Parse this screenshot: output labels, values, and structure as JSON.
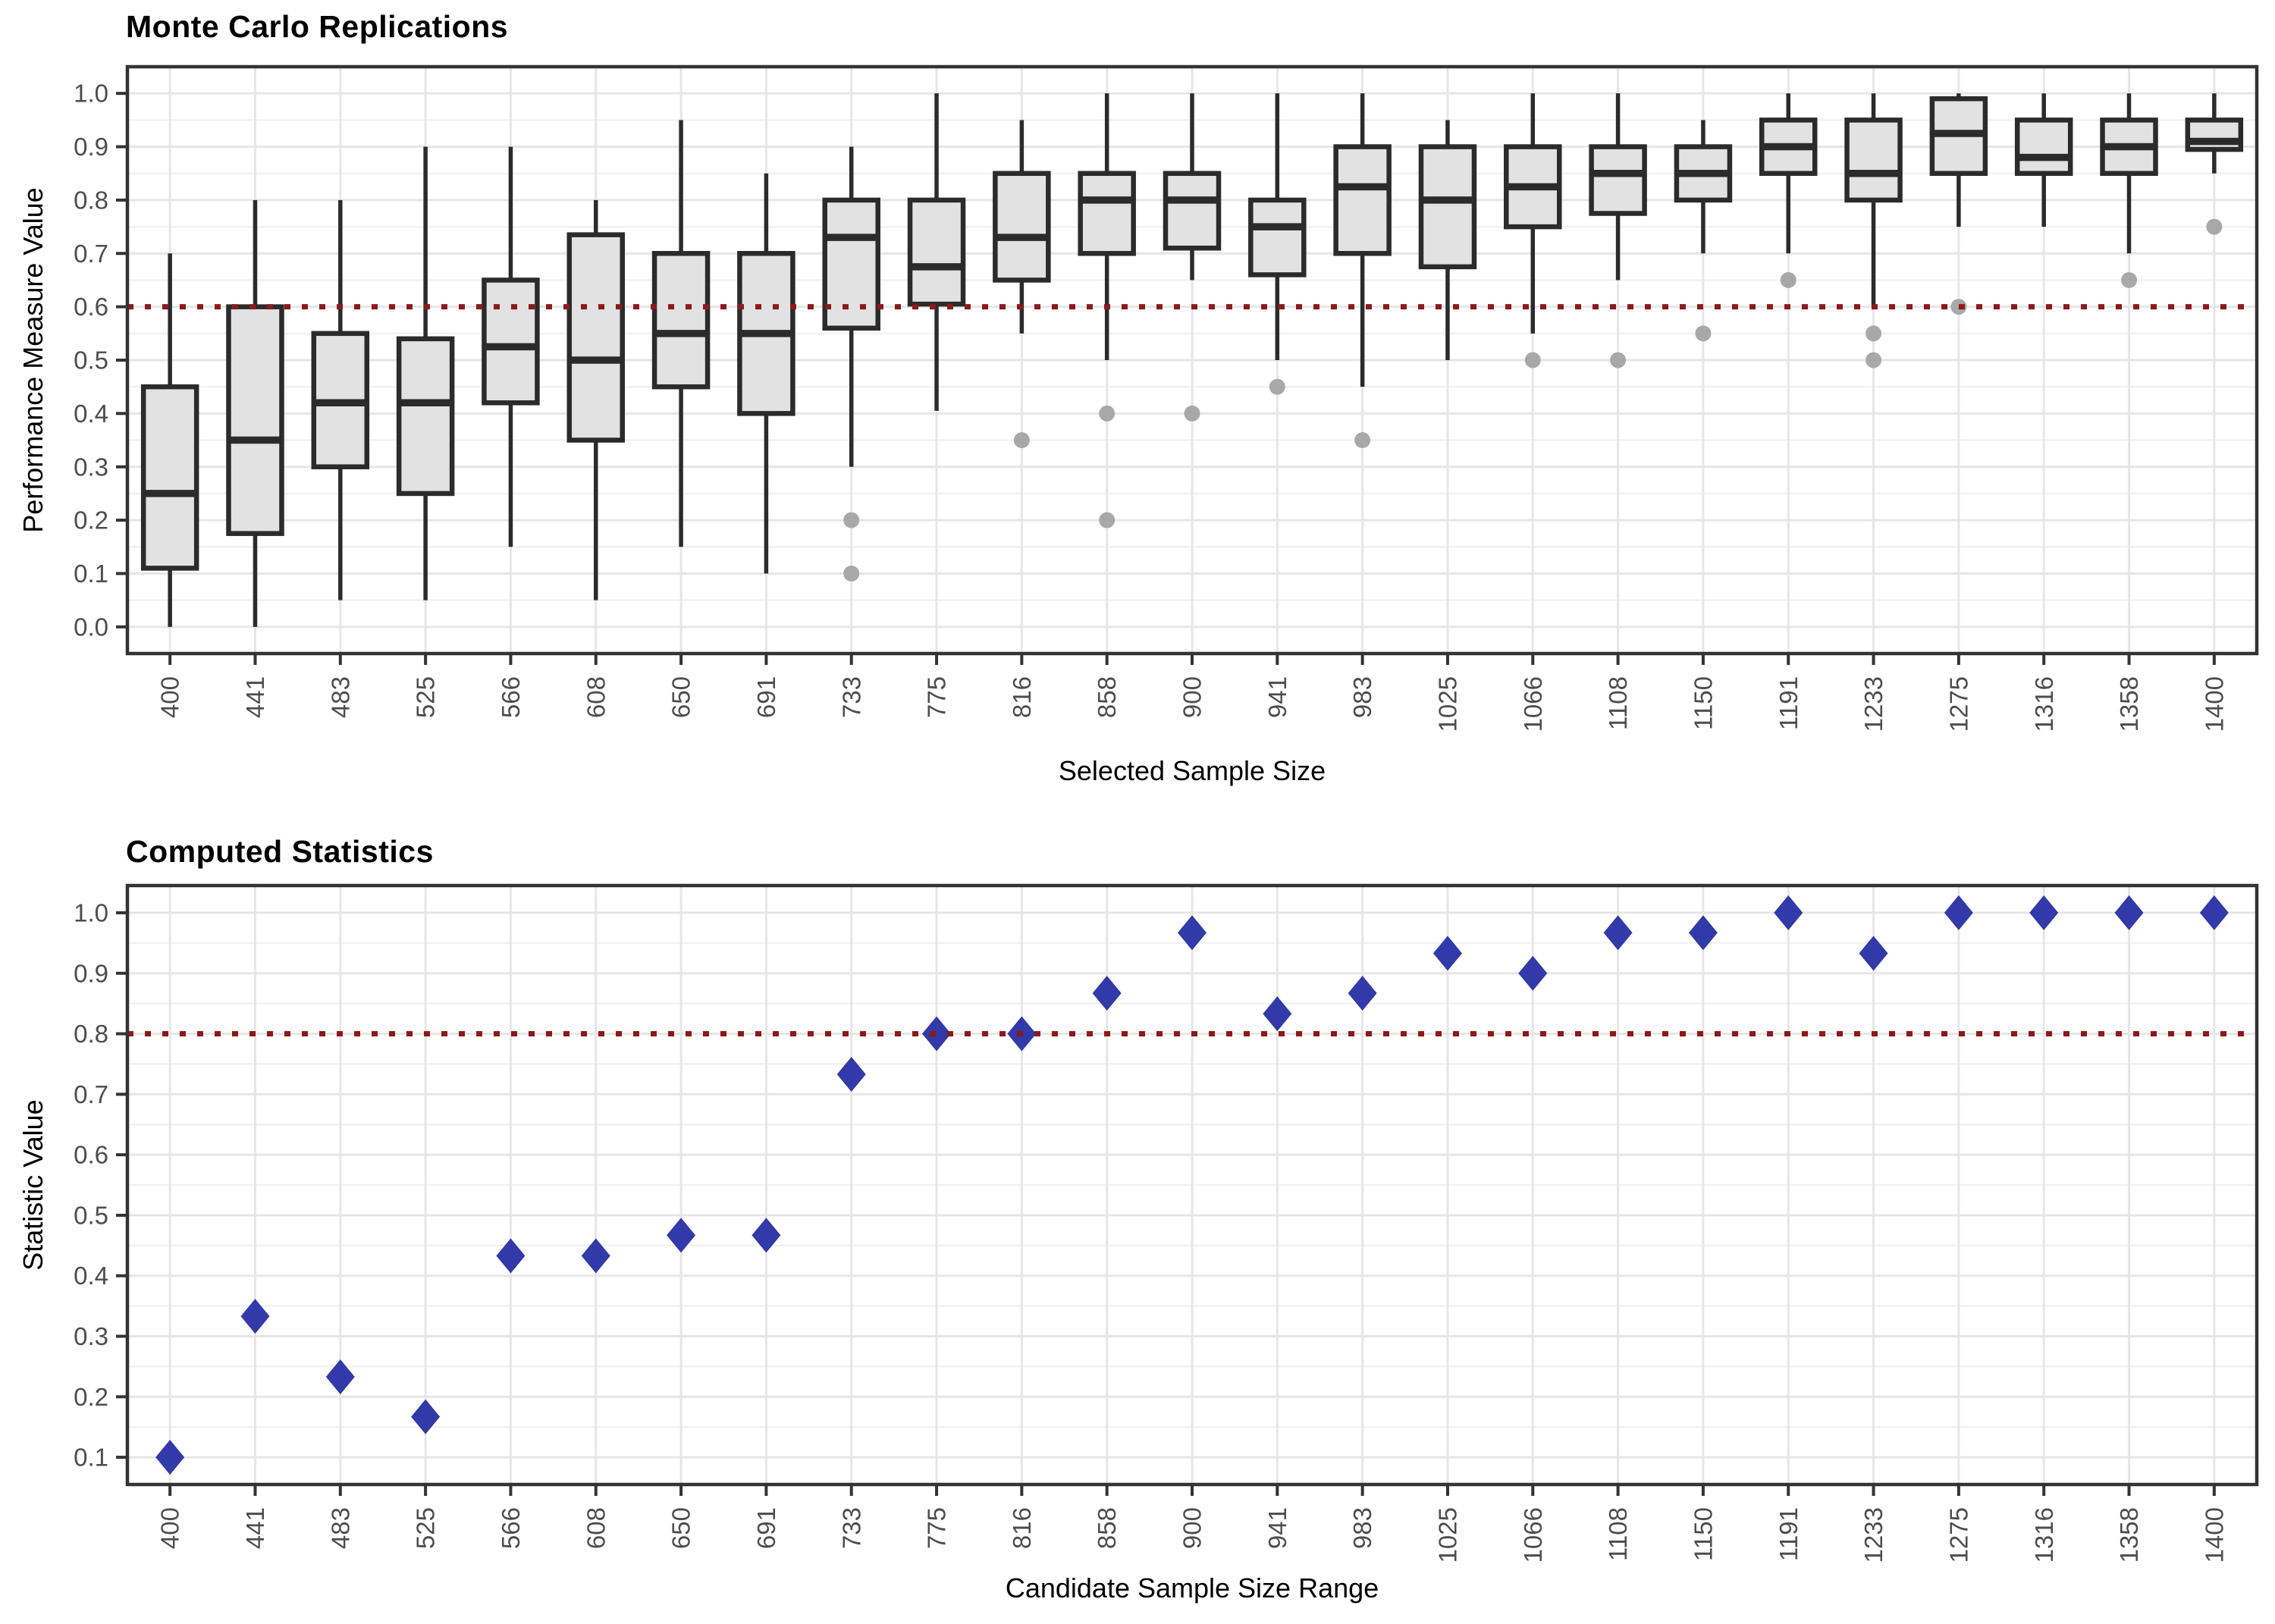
{
  "figure": {
    "background": "#ffffff",
    "colors": {
      "box_fill": "#e2e2e2",
      "box_stroke": "#2b2b2b",
      "whisker": "#2b2b2b",
      "outlier": "#a8a8a8",
      "point": "#3239a8",
      "reference_line": "#8b1a1a",
      "grid_major": "#e6e6e6",
      "grid_minor": "#f2f2f2",
      "panel_border": "#333333",
      "tick_mark": "#333333",
      "tick_label": "#4d4d4d",
      "title_text": "#000000"
    }
  },
  "chart_data": [
    {
      "type": "boxplot",
      "title": "Monte Carlo Replications",
      "xlabel": "Selected Sample Size",
      "ylabel": "Performance Measure Value",
      "legend_position": "none",
      "grid": "major+minor",
      "ylim": [
        -0.05,
        1.05
      ],
      "yticks": [
        0.0,
        0.1,
        0.2,
        0.3,
        0.4,
        0.5,
        0.6,
        0.7,
        0.8,
        0.9,
        1.0
      ],
      "reference_line_y": 0.6,
      "categories": [
        "400",
        "441",
        "483",
        "525",
        "566",
        "608",
        "650",
        "691",
        "733",
        "775",
        "816",
        "858",
        "900",
        "941",
        "983",
        "1025",
        "1066",
        "1108",
        "1150",
        "1191",
        "1233",
        "1275",
        "1316",
        "1358",
        "1400"
      ],
      "boxes": [
        {
          "lower": 0.0,
          "q1": 0.11,
          "median": 0.25,
          "q3": 0.45,
          "upper": 0.7,
          "outliers": []
        },
        {
          "lower": 0.0,
          "q1": 0.175,
          "median": 0.35,
          "q3": 0.6,
          "upper": 0.8,
          "outliers": []
        },
        {
          "lower": 0.05,
          "q1": 0.3,
          "median": 0.42,
          "q3": 0.55,
          "upper": 0.8,
          "outliers": []
        },
        {
          "lower": 0.05,
          "q1": 0.25,
          "median": 0.42,
          "q3": 0.54,
          "upper": 0.9,
          "outliers": []
        },
        {
          "lower": 0.15,
          "q1": 0.42,
          "median": 0.525,
          "q3": 0.65,
          "upper": 0.9,
          "outliers": []
        },
        {
          "lower": 0.05,
          "q1": 0.35,
          "median": 0.5,
          "q3": 0.735,
          "upper": 0.8,
          "outliers": []
        },
        {
          "lower": 0.15,
          "q1": 0.45,
          "median": 0.55,
          "q3": 0.7,
          "upper": 0.95,
          "outliers": []
        },
        {
          "lower": 0.1,
          "q1": 0.4,
          "median": 0.55,
          "q3": 0.7,
          "upper": 0.85,
          "outliers": []
        },
        {
          "lower": 0.3,
          "q1": 0.56,
          "median": 0.73,
          "q3": 0.8,
          "upper": 0.9,
          "outliers": [
            0.2,
            0.1
          ]
        },
        {
          "lower": 0.405,
          "q1": 0.605,
          "median": 0.675,
          "q3": 0.8,
          "upper": 1.0,
          "outliers": []
        },
        {
          "lower": 0.55,
          "q1": 0.65,
          "median": 0.73,
          "q3": 0.85,
          "upper": 0.95,
          "outliers": [
            0.35
          ]
        },
        {
          "lower": 0.5,
          "q1": 0.7,
          "median": 0.8,
          "q3": 0.85,
          "upper": 1.0,
          "outliers": [
            0.4,
            0.2
          ]
        },
        {
          "lower": 0.65,
          "q1": 0.71,
          "median": 0.8,
          "q3": 0.85,
          "upper": 1.0,
          "outliers": [
            0.4
          ]
        },
        {
          "lower": 0.5,
          "q1": 0.66,
          "median": 0.75,
          "q3": 0.8,
          "upper": 1.0,
          "outliers": [
            0.45
          ]
        },
        {
          "lower": 0.45,
          "q1": 0.7,
          "median": 0.825,
          "q3": 0.9,
          "upper": 1.0,
          "outliers": [
            0.35
          ]
        },
        {
          "lower": 0.5,
          "q1": 0.675,
          "median": 0.8,
          "q3": 0.9,
          "upper": 0.95,
          "outliers": []
        },
        {
          "lower": 0.55,
          "q1": 0.75,
          "median": 0.825,
          "q3": 0.9,
          "upper": 1.0,
          "outliers": [
            0.5
          ]
        },
        {
          "lower": 0.65,
          "q1": 0.775,
          "median": 0.85,
          "q3": 0.9,
          "upper": 1.0,
          "outliers": [
            0.5
          ]
        },
        {
          "lower": 0.7,
          "q1": 0.8,
          "median": 0.85,
          "q3": 0.9,
          "upper": 0.95,
          "outliers": [
            0.55
          ]
        },
        {
          "lower": 0.7,
          "q1": 0.85,
          "median": 0.9,
          "q3": 0.95,
          "upper": 1.0,
          "outliers": [
            0.65
          ]
        },
        {
          "lower": 0.6,
          "q1": 0.8,
          "median": 0.85,
          "q3": 0.95,
          "upper": 1.0,
          "outliers": [
            0.55,
            0.5
          ]
        },
        {
          "lower": 0.75,
          "q1": 0.85,
          "median": 0.925,
          "q3": 0.99,
          "upper": 1.0,
          "outliers": [
            0.6
          ]
        },
        {
          "lower": 0.75,
          "q1": 0.85,
          "median": 0.88,
          "q3": 0.95,
          "upper": 1.0,
          "outliers": []
        },
        {
          "lower": 0.7,
          "q1": 0.85,
          "median": 0.9,
          "q3": 0.95,
          "upper": 1.0,
          "outliers": [
            0.65
          ]
        },
        {
          "lower": 0.85,
          "q1": 0.895,
          "median": 0.91,
          "q3": 0.95,
          "upper": 1.0,
          "outliers": [
            0.75
          ]
        }
      ]
    },
    {
      "type": "scatter",
      "title": "Computed Statistics",
      "xlabel": "Candidate Sample Size Range",
      "ylabel": "Statistic Value",
      "legend_position": "none",
      "marker": "diamond",
      "grid": "major+minor",
      "ylim": [
        0.055,
        1.045
      ],
      "yticks": [
        0.1,
        0.2,
        0.3,
        0.4,
        0.5,
        0.6,
        0.7,
        0.8,
        0.9,
        1.0
      ],
      "reference_line_y": 0.8,
      "categories": [
        "400",
        "441",
        "483",
        "525",
        "566",
        "608",
        "650",
        "691",
        "733",
        "775",
        "816",
        "858",
        "900",
        "941",
        "983",
        "1025",
        "1066",
        "1108",
        "1150",
        "1191",
        "1233",
        "1275",
        "1316",
        "1358",
        "1400"
      ],
      "values": [
        0.1,
        0.333,
        0.233,
        0.167,
        0.433,
        0.433,
        0.467,
        0.467,
        0.733,
        0.8,
        0.8,
        0.867,
        0.967,
        0.833,
        0.867,
        0.933,
        0.9,
        0.967,
        0.967,
        1.0,
        0.933,
        1.0,
        1.0,
        1.0,
        1.0
      ]
    }
  ]
}
